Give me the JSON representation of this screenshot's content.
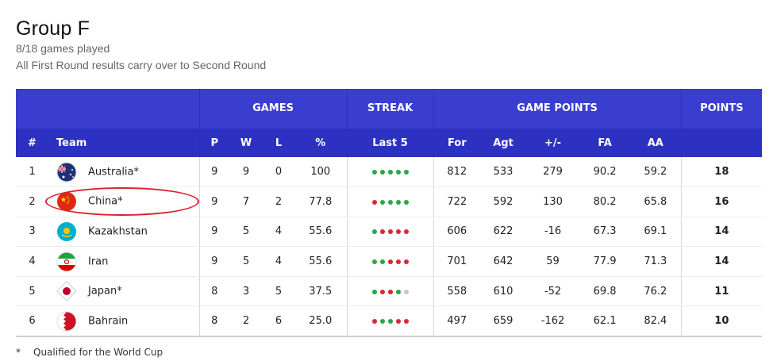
{
  "header": {
    "title": "Group F",
    "games_played": "8/18 games played",
    "note": "All First Round results carry over to Second Round"
  },
  "table": {
    "groups": {
      "games": "GAMES",
      "streak": "STREAK",
      "game_points": "GAME POINTS",
      "points": "POINTS"
    },
    "columns": [
      "#",
      "Team",
      "P",
      "W",
      "L",
      "%",
      "Last 5",
      "For",
      "Agt",
      "+/-",
      "FA",
      "AA",
      ""
    ],
    "rows": [
      {
        "rank": "1",
        "team": "Australia*",
        "flag": "australia-flag",
        "p": "9",
        "w": "9",
        "l": "0",
        "pct": "100",
        "streak": [
          "W",
          "W",
          "W",
          "W",
          "W"
        ],
        "for": "812",
        "agt": "533",
        "diff": "279",
        "fa": "90.2",
        "aa": "59.2",
        "points": "18"
      },
      {
        "rank": "2",
        "team": "China*",
        "flag": "china-flag",
        "p": "9",
        "w": "7",
        "l": "2",
        "pct": "77.8",
        "streak": [
          "L",
          "W",
          "W",
          "W",
          "W"
        ],
        "for": "722",
        "agt": "592",
        "diff": "130",
        "fa": "80.2",
        "aa": "65.8",
        "points": "16"
      },
      {
        "rank": "3",
        "team": "Kazakhstan",
        "flag": "kazakhstan-flag",
        "p": "9",
        "w": "5",
        "l": "4",
        "pct": "55.6",
        "streak": [
          "W",
          "L",
          "L",
          "L",
          "L"
        ],
        "for": "606",
        "agt": "622",
        "diff": "-16",
        "fa": "67.3",
        "aa": "69.1",
        "points": "14"
      },
      {
        "rank": "4",
        "team": "Iran",
        "flag": "iran-flag",
        "p": "9",
        "w": "5",
        "l": "4",
        "pct": "55.6",
        "streak": [
          "W",
          "W",
          "L",
          "L",
          "L"
        ],
        "for": "701",
        "agt": "642",
        "diff": "59",
        "fa": "77.9",
        "aa": "71.3",
        "points": "14"
      },
      {
        "rank": "5",
        "team": "Japan*",
        "flag": "japan-flag",
        "p": "8",
        "w": "3",
        "l": "5",
        "pct": "37.5",
        "streak": [
          "W",
          "L",
          "L",
          "W",
          "N"
        ],
        "for": "558",
        "agt": "610",
        "diff": "-52",
        "fa": "69.8",
        "aa": "76.2",
        "points": "11"
      },
      {
        "rank": "6",
        "team": "Bahrain",
        "flag": "bahrain-flag",
        "p": "8",
        "w": "2",
        "l": "6",
        "pct": "25.0",
        "streak": [
          "L",
          "W",
          "W",
          "L",
          "L"
        ],
        "for": "497",
        "agt": "659",
        "diff": "-162",
        "fa": "62.1",
        "aa": "82.4",
        "points": "10"
      }
    ]
  },
  "streak_colors": {
    "W": "#2aa745",
    "L": "#d8283a",
    "N": "#c8c8c8"
  },
  "footnote": {
    "symbol": "*",
    "text": "Qualified for the World Cup"
  }
}
